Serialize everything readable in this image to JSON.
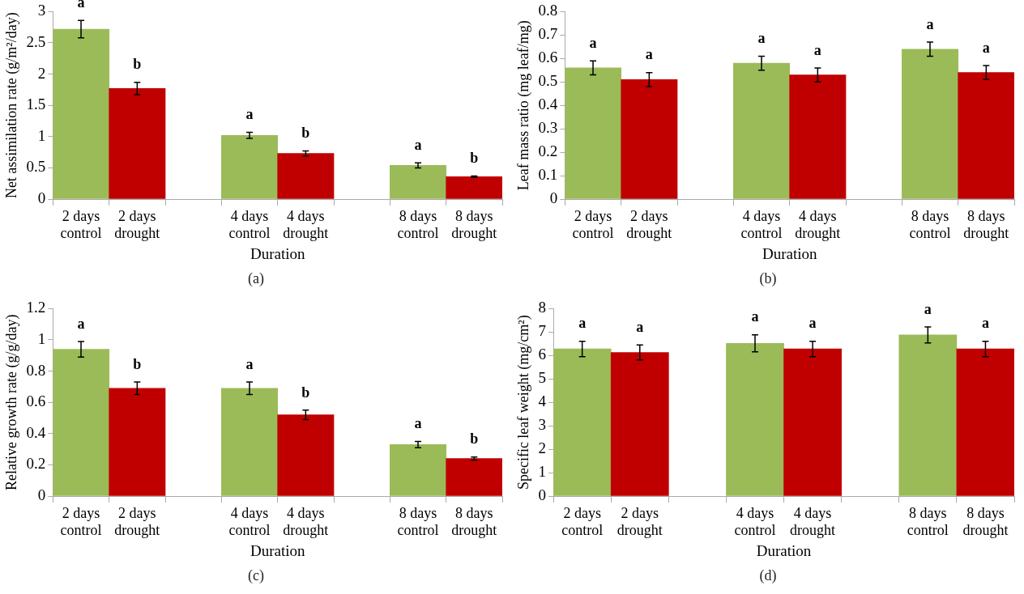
{
  "chart_data": [
    {
      "type": "bar",
      "ylabel": "Net assimilation rate (g/m²/day)",
      "xlabel": "Duration",
      "categories": [
        "2 days control",
        "2 days drought",
        null,
        "4 days control",
        "4 days drought",
        null,
        "8 days control",
        "8 days drought"
      ],
      "values": [
        2.72,
        1.77,
        null,
        1.02,
        0.73,
        null,
        0.54,
        0.36
      ],
      "colors": [
        "#9bbb59",
        "#c00000",
        null,
        "#9bbb59",
        "#c00000",
        null,
        "#9bbb59",
        "#c00000"
      ],
      "errors": [
        0.14,
        0.1,
        null,
        0.05,
        0.04,
        null,
        0.04,
        0.01
      ],
      "ylim": [
        0,
        3
      ],
      "yticks": [
        0,
        0.5,
        1,
        1.5,
        2,
        2.5,
        3
      ],
      "annotations": [
        {
          "text": "a",
          "x": "2 days control",
          "y": 2.72
        },
        {
          "text": "b",
          "x": "2 days drought",
          "y": 1.77
        },
        {
          "text": "a",
          "x": "4 days control",
          "y": 1.02
        },
        {
          "text": "b",
          "x": "4 days drought",
          "y": 0.73
        },
        {
          "text": "a",
          "x": "8 days control",
          "y": 0.54
        },
        {
          "text": "b",
          "x": "8 days drought",
          "y": 0.36
        },
        "(a)"
      ]
    },
    {
      "type": "bar",
      "ylabel": "Leaf mass ratio (mg leaf/mg)",
      "xlabel": "Duration",
      "categories": [
        "2 days control",
        "2 days drought",
        null,
        "4 days control",
        "4 days drought",
        null,
        "8 days control",
        "8 days drought"
      ],
      "values": [
        0.56,
        0.51,
        null,
        0.58,
        0.53,
        null,
        0.64,
        0.54
      ],
      "colors": [
        "#9bbb59",
        "#c00000",
        null,
        "#9bbb59",
        "#c00000",
        null,
        "#9bbb59",
        "#c00000"
      ],
      "errors": [
        0.03,
        0.03,
        null,
        0.03,
        0.03,
        null,
        0.03,
        0.03
      ],
      "ylim": [
        0,
        0.8
      ],
      "yticks": [
        0,
        0.1,
        0.2,
        0.3,
        0.4,
        0.5,
        0.6,
        0.7,
        0.8
      ],
      "annotations": [
        {
          "text": "a",
          "x": "2 days control",
          "y": 0.56
        },
        {
          "text": "a",
          "x": "2 days drought",
          "y": 0.51
        },
        {
          "text": "a",
          "x": "4 days control",
          "y": 0.58
        },
        {
          "text": "a",
          "x": "4 days drought",
          "y": 0.53
        },
        {
          "text": "a",
          "x": "8 days control",
          "y": 0.64
        },
        {
          "text": "a",
          "x": "8 days drought",
          "y": 0.54
        },
        "(b)"
      ]
    },
    {
      "type": "bar",
      "ylabel": "Relative growth rate (g/g/day)",
      "xlabel": "Duration",
      "categories": [
        "2 days control",
        "2 days drought",
        null,
        "4 days control",
        "4 days drought",
        null,
        "8 days control",
        "8 days drought"
      ],
      "values": [
        0.94,
        0.69,
        null,
        0.69,
        0.52,
        null,
        0.33,
        0.24
      ],
      "colors": [
        "#9bbb59",
        "#c00000",
        null,
        "#9bbb59",
        "#c00000",
        null,
        "#9bbb59",
        "#c00000"
      ],
      "errors": [
        0.05,
        0.04,
        null,
        0.04,
        0.03,
        null,
        0.02,
        0.01
      ],
      "ylim": [
        0,
        1.2
      ],
      "yticks": [
        0,
        0.2,
        0.4,
        0.6,
        0.8,
        1,
        1.2
      ],
      "annotations": [
        {
          "text": "a",
          "x": "2 days control",
          "y": 0.94
        },
        {
          "text": "b",
          "x": "2 days drought",
          "y": 0.69
        },
        {
          "text": "a",
          "x": "4 days control",
          "y": 0.69
        },
        {
          "text": "b",
          "x": "4 days drought",
          "y": 0.52
        },
        {
          "text": "a",
          "x": "8 days control",
          "y": 0.33
        },
        {
          "text": "b",
          "x": "8 days drought",
          "y": 0.24
        },
        "(c)"
      ]
    },
    {
      "type": "bar",
      "ylabel": "Specific leaf weight (mg/cm²)",
      "xlabel": "Duration",
      "categories": [
        "2 days control",
        "2 days drought",
        null,
        "4 days control",
        "4 days drought",
        null,
        "8 days control",
        "8 days drought"
      ],
      "values": [
        6.28,
        6.13,
        null,
        6.52,
        6.28,
        null,
        6.88,
        6.28
      ],
      "colors": [
        "#9bbb59",
        "#c00000",
        null,
        "#9bbb59",
        "#c00000",
        null,
        "#9bbb59",
        "#c00000"
      ],
      "errors": [
        0.33,
        0.32,
        null,
        0.36,
        0.33,
        null,
        0.34,
        0.33
      ],
      "ylim": [
        0,
        8
      ],
      "yticks": [
        0,
        1,
        2,
        3,
        4,
        5,
        6,
        7,
        8
      ],
      "annotations": [
        {
          "text": "a",
          "x": "2 days control",
          "y": 6.28
        },
        {
          "text": "a",
          "x": "2 days drought",
          "y": 6.13
        },
        {
          "text": "a",
          "x": "4 days control",
          "y": 6.52
        },
        {
          "text": "a",
          "x": "4 days drought",
          "y": 6.28
        },
        {
          "text": "a",
          "x": "8 days control",
          "y": 6.88
        },
        {
          "text": "a",
          "x": "8 days drought",
          "y": 6.28
        },
        "(d)"
      ]
    }
  ]
}
